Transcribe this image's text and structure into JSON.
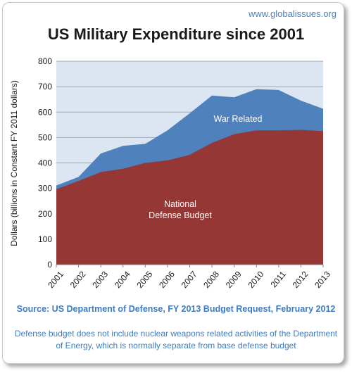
{
  "site": "www.globalissues.org",
  "source": "Source: US Department of Defense, FY 2013 Budget Request, February 2012",
  "note": "Defense budget does not include nuclear weapons related activities of the Department of Energy, which is normally separate from base defense budget",
  "colors": {
    "war": "#4f81bd",
    "national": "#953735",
    "plot_bg": "#dce6f2",
    "grid": "#a6a6a6"
  },
  "chart_data": {
    "type": "area",
    "title": "US Military Expenditure since 2001",
    "xlabel": "",
    "ylabel": "Dollars (billions in Constant FY 2011 dollars)",
    "ylim": [
      0,
      800
    ],
    "yticks": [
      0,
      100,
      200,
      300,
      400,
      500,
      600,
      700,
      800
    ],
    "categories": [
      "2001",
      "2002",
      "2003",
      "2004",
      "2005",
      "2006",
      "2007",
      "2008",
      "2009",
      "2010",
      "2011",
      "2012",
      "2013"
    ],
    "stacked": true,
    "grid": true,
    "legend": "none",
    "series": [
      {
        "name": "National Defense Budget",
        "values": [
          297,
          329,
          364,
          377,
          400,
          410,
          432,
          479,
          513,
          528,
          528,
          530,
          525
        ]
      },
      {
        "name": "War Related",
        "values": [
          14,
          16,
          73,
          90,
          75,
          118,
          163,
          186,
          145,
          162,
          159,
          115,
          88
        ]
      }
    ],
    "labels": {
      "war": "War Related",
      "national_line1": "National",
      "national_line2": "Defense Budget"
    }
  }
}
